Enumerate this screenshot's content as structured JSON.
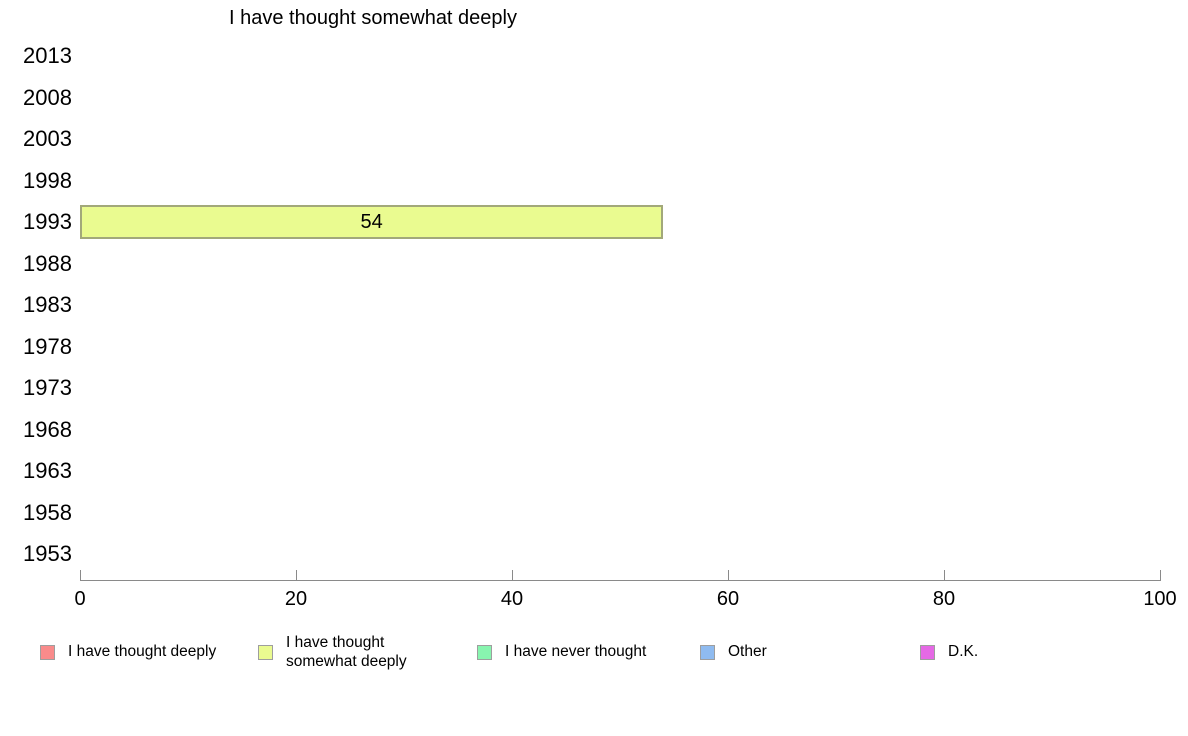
{
  "chart_data": {
    "type": "bar",
    "orientation": "horizontal",
    "title": "I have thought somewhat deeply",
    "categories": [
      "2013",
      "2008",
      "2003",
      "1998",
      "1993",
      "1988",
      "1983",
      "1978",
      "1973",
      "1968",
      "1963",
      "1958",
      "1953"
    ],
    "series": [
      {
        "name": "I have thought deeply",
        "color": "#f98b8b",
        "values": [
          null,
          null,
          null,
          null,
          null,
          null,
          null,
          null,
          null,
          null,
          null,
          null,
          null
        ]
      },
      {
        "name": "I have thought somewhat deeply",
        "color": "#eafb90",
        "values": [
          null,
          null,
          null,
          null,
          54,
          null,
          null,
          null,
          null,
          null,
          null,
          null,
          null
        ]
      },
      {
        "name": "I have never thought",
        "color": "#88f5af",
        "values": [
          null,
          null,
          null,
          null,
          null,
          null,
          null,
          null,
          null,
          null,
          null,
          null,
          null
        ]
      },
      {
        "name": "Other",
        "color": "#8fbbf0",
        "values": [
          null,
          null,
          null,
          null,
          null,
          null,
          null,
          null,
          null,
          null,
          null,
          null,
          null
        ]
      },
      {
        "name": "D.K.",
        "color": "#e569e5",
        "values": [
          null,
          null,
          null,
          null,
          null,
          null,
          null,
          null,
          null,
          null,
          null,
          null,
          null
        ]
      }
    ],
    "xlim": [
      0,
      100
    ],
    "xticks": [
      0,
      20,
      40,
      60,
      80,
      100
    ],
    "grid": false,
    "legend_position": "bottom",
    "bar_border_color": "#a2a87a",
    "axis_color": "#8a8a8a"
  }
}
